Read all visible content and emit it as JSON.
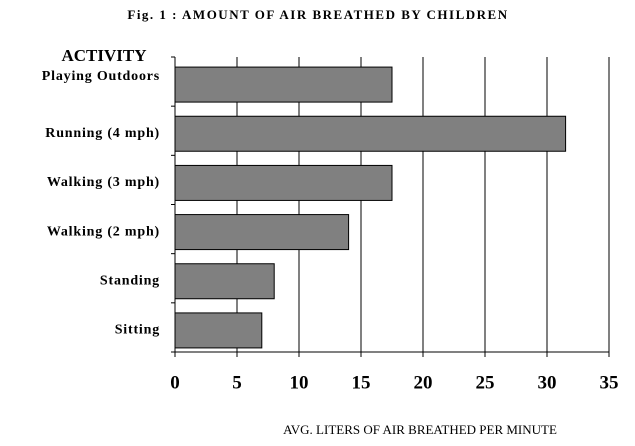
{
  "chart_data": {
    "type": "bar",
    "orientation": "horizontal",
    "title": "Fig. 1 : AMOUNT OF AIR BREATHED BY CHILDREN",
    "y_label": "ACTIVITY",
    "x_label": "AVG. LITERS OF AIR BREATHED PER MINUTE",
    "categories": [
      "Playing Outdoors",
      "Running (4 mph)",
      "Walking (3 mph)",
      "Walking (2 mph)",
      "Standing",
      "Sitting"
    ],
    "values": [
      17.5,
      31.5,
      17.5,
      14,
      8,
      7
    ],
    "color": "#808080",
    "xlim": [
      0,
      35
    ],
    "xticks": [
      0,
      5,
      10,
      15,
      20,
      25,
      30,
      35
    ],
    "grid": true
  }
}
